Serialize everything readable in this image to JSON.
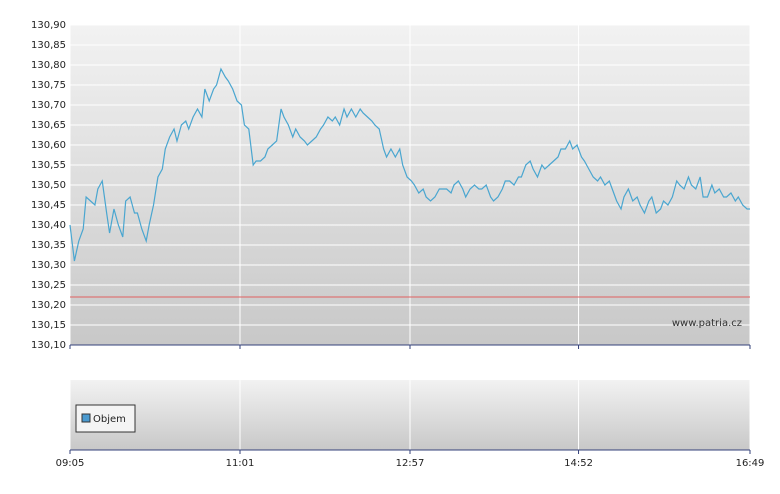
{
  "chart_data": {
    "type": "line",
    "series": [
      {
        "color": "#4aa6d0",
        "values": [
          130.4,
          130.31,
          130.36,
          130.39,
          130.47,
          130.46,
          130.45,
          130.49,
          130.51,
          130.43,
          130.38,
          130.44,
          130.4,
          130.37,
          130.46,
          130.47,
          130.43,
          130.43,
          130.39,
          130.36,
          130.4,
          130.45,
          130.52,
          130.54,
          130.59,
          130.62,
          130.64,
          130.61,
          130.65,
          130.66,
          130.64,
          130.67,
          130.69,
          130.67,
          130.74,
          130.71,
          130.74,
          130.75,
          130.79,
          130.77,
          130.76,
          130.74,
          130.71,
          130.7,
          130.65,
          130.64,
          130.55,
          130.56,
          130.56,
          130.57,
          130.59,
          130.6,
          130.61,
          130.69,
          130.67,
          130.65,
          130.62,
          130.64,
          130.62,
          130.61,
          130.6,
          130.61,
          130.62,
          130.64,
          130.65,
          130.67,
          130.66,
          130.67,
          130.65,
          130.69,
          130.67,
          130.69,
          130.67,
          130.69,
          130.68,
          130.67,
          130.66,
          130.65,
          130.64,
          130.59,
          130.57,
          130.59,
          130.57,
          130.59,
          130.55,
          130.52,
          130.51,
          130.5,
          130.48,
          130.49,
          130.47,
          130.46,
          130.47,
          130.49,
          130.49,
          130.49,
          130.48,
          130.5,
          130.51,
          130.49,
          130.47,
          130.49,
          130.5,
          130.49,
          130.49,
          130.5,
          130.47,
          130.46,
          130.47,
          130.49,
          130.51,
          130.51,
          130.5,
          130.52,
          130.52,
          130.55,
          130.56,
          130.54,
          130.52,
          130.55,
          130.54,
          130.55,
          130.56,
          130.57,
          130.59,
          130.59,
          130.61,
          130.59,
          130.6,
          130.57,
          130.56,
          130.54,
          130.52,
          130.51,
          130.52,
          130.5,
          130.51,
          130.49,
          130.46,
          130.44,
          130.47,
          130.49,
          130.46,
          130.47,
          130.45,
          130.43,
          130.46,
          130.47,
          130.43,
          130.44,
          130.46,
          130.45,
          130.47,
          130.51,
          130.5,
          130.49,
          130.52,
          130.5,
          130.49,
          130.52,
          130.47,
          130.47,
          130.5,
          130.48,
          130.49,
          130.47,
          130.47,
          130.48,
          130.46,
          130.47,
          130.45,
          130.44,
          130.44
        ]
      }
    ],
    "x": [
      545,
      548,
      551,
      554,
      556,
      559,
      562,
      564,
      567,
      570,
      572,
      575,
      578,
      581,
      583,
      586,
      589,
      591,
      594,
      597,
      599,
      602,
      605,
      608,
      610,
      613,
      616,
      618,
      621,
      624,
      626,
      629,
      632,
      635,
      637,
      640,
      643,
      645,
      648,
      651,
      653,
      656,
      659,
      662,
      664,
      667,
      670,
      672,
      675,
      678,
      680,
      683,
      686,
      689,
      691,
      694,
      697,
      699,
      702,
      705,
      707,
      710,
      713,
      716,
      718,
      721,
      724,
      726,
      729,
      732,
      734,
      737,
      740,
      743,
      745,
      748,
      751,
      753,
      756,
      759,
      761,
      764,
      767,
      770,
      772,
      775,
      778,
      780,
      783,
      786,
      788,
      791,
      794,
      797,
      799,
      802,
      805,
      807,
      810,
      813,
      815,
      818,
      821,
      824,
      826,
      829,
      832,
      834,
      837,
      840,
      842,
      845,
      848,
      851,
      853,
      856,
      859,
      861,
      864,
      867,
      869,
      872,
      875,
      878,
      880,
      883,
      886,
      888,
      891,
      894,
      896,
      899,
      902,
      905,
      907,
      910,
      913,
      915,
      918,
      921,
      923,
      926,
      929,
      932,
      934,
      937,
      940,
      942,
      945,
      948,
      950,
      953,
      956,
      959,
      961,
      964,
      967,
      969,
      972,
      975,
      977,
      980,
      983,
      985,
      988,
      991,
      993,
      996,
      999,
      1001,
      1004,
      1007,
      1009
    ],
    "xlim": [
      545,
      1009
    ],
    "xticks": [
      {
        "value": 545,
        "label": "09:05"
      },
      {
        "value": 661,
        "label": "11:01"
      },
      {
        "value": 777,
        "label": "12:57"
      },
      {
        "value": 892,
        "label": "14:52"
      },
      {
        "value": 1009,
        "label": "16:49"
      }
    ],
    "ylim": [
      130.1,
      130.9
    ],
    "yticks": [
      {
        "value": 130.1,
        "label": "130,10"
      },
      {
        "value": 130.15,
        "label": "130,15"
      },
      {
        "value": 130.2,
        "label": "130,20"
      },
      {
        "value": 130.25,
        "label": "130,25"
      },
      {
        "value": 130.3,
        "label": "130,30"
      },
      {
        "value": 130.35,
        "label": "130,35"
      },
      {
        "value": 130.4,
        "label": "130,40"
      },
      {
        "value": 130.45,
        "label": "130,45"
      },
      {
        "value": 130.5,
        "label": "130,50"
      },
      {
        "value": 130.55,
        "label": "130,55"
      },
      {
        "value": 130.6,
        "label": "130,60"
      },
      {
        "value": 130.65,
        "label": "130,65"
      },
      {
        "value": 130.7,
        "label": "130,70"
      },
      {
        "value": 130.75,
        "label": "130,75"
      },
      {
        "value": 130.8,
        "label": "130,80"
      },
      {
        "value": 130.85,
        "label": "130,85"
      },
      {
        "value": 130.9,
        "label": "130,90"
      }
    ],
    "grid": true,
    "reference_line": {
      "value": 130.22,
      "color": "#e06060"
    },
    "watermark": "www.patria.cz",
    "volume_panel": {
      "legend": "Objem",
      "color": "#4a9ad0"
    }
  }
}
